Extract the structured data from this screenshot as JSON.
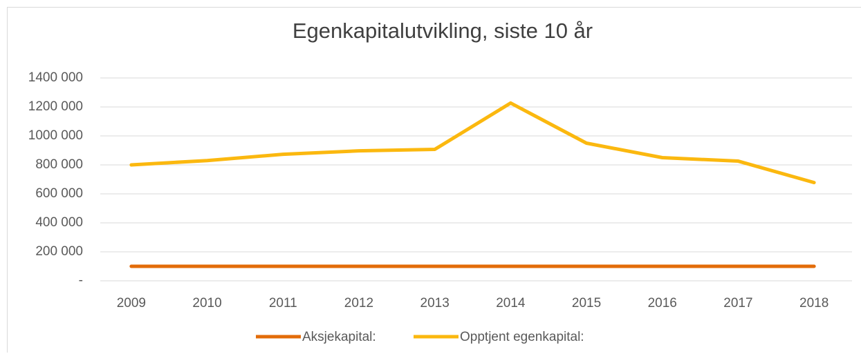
{
  "chart_data": {
    "type": "line",
    "title": "Egenkapitalutvikling, siste 10 år",
    "categories": [
      "2009",
      "2010",
      "2011",
      "2012",
      "2013",
      "2014",
      "2015",
      "2016",
      "2017",
      "2018"
    ],
    "series": [
      {
        "name": "Aksjekapital:",
        "color": "#e36c09",
        "values": [
          100000,
          100000,
          100000,
          100000,
          100000,
          100000,
          100000,
          100000,
          100000,
          100000
        ]
      },
      {
        "name": "Opptjent egenkapital:",
        "color": "#fbb80f",
        "values": [
          800000,
          830000,
          873000,
          897000,
          907000,
          1227000,
          950000,
          850000,
          826000,
          678000
        ]
      }
    ],
    "ylim": [
      0,
      1400000
    ],
    "yticks": [
      {
        "value": 0,
        "label": "-"
      },
      {
        "value": 200000,
        "label": "200 000"
      },
      {
        "value": 400000,
        "label": "400 000"
      },
      {
        "value": 600000,
        "label": "600 000"
      },
      {
        "value": 800000,
        "label": "800 000"
      },
      {
        "value": 1000000,
        "label": "1000 000"
      },
      {
        "value": 1200000,
        "label": "1200 000"
      },
      {
        "value": 1400000,
        "label": "1400 000"
      }
    ],
    "grid": true,
    "legend": "bottom"
  }
}
